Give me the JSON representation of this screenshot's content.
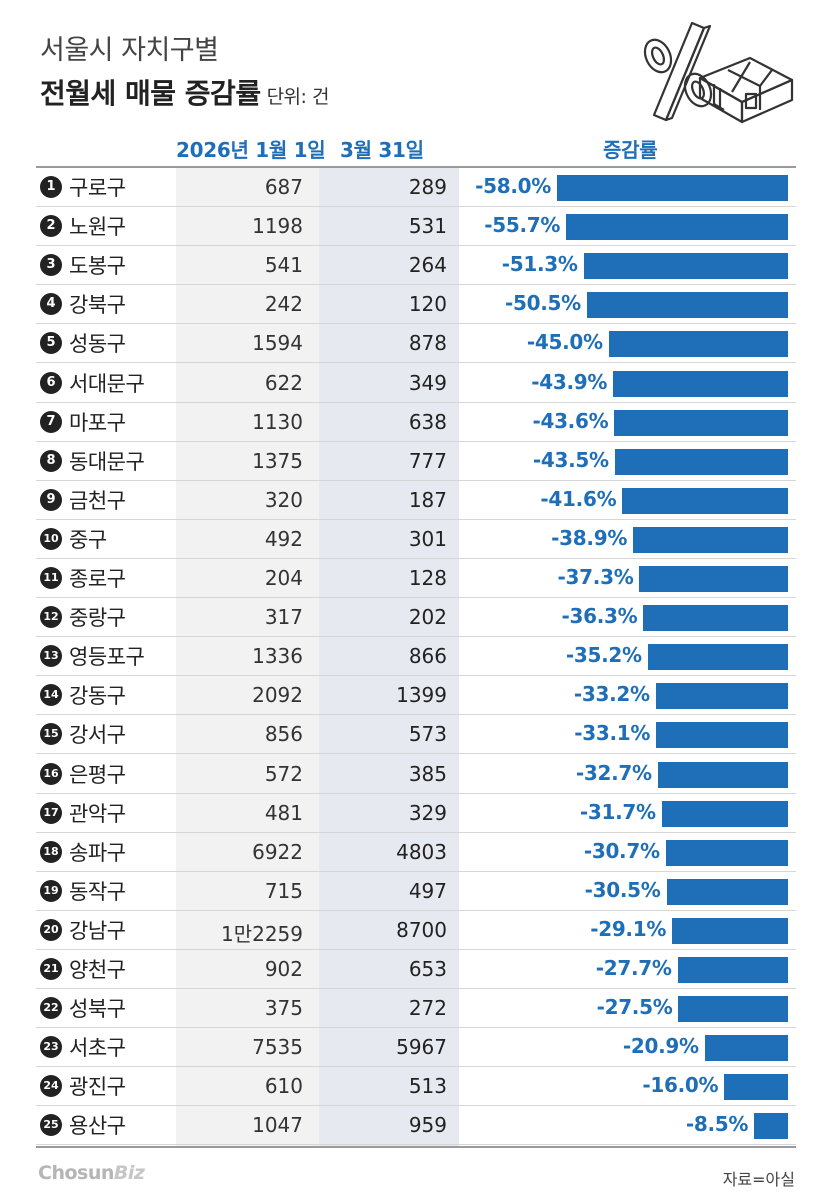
{
  "title": {
    "line1": "서울시 자치구별",
    "line2": "전월세 매물 증감률",
    "unit": "단위: 건"
  },
  "columns": {
    "col1": "2026년 1월 1일",
    "col2": "3월 31일",
    "col3": "증감률"
  },
  "chart_data": {
    "type": "bar",
    "title": "서울시 자치구별 전월세 매물 증감률",
    "unit": "단위: 건",
    "categories": [
      "구로구",
      "노원구",
      "도봉구",
      "강북구",
      "성동구",
      "서대문구",
      "마포구",
      "동대문구",
      "금천구",
      "중구",
      "종로구",
      "중랑구",
      "영등포구",
      "강동구",
      "강서구",
      "은평구",
      "관악구",
      "송파구",
      "동작구",
      "강남구",
      "양천구",
      "성북구",
      "서초구",
      "광진구",
      "용산구"
    ],
    "rank_labels": [
      "1",
      "2",
      "3",
      "4",
      "5",
      "6",
      "7",
      "8",
      "9",
      "10",
      "11",
      "12",
      "13",
      "14",
      "15",
      "16",
      "17",
      "18",
      "19",
      "20",
      "21",
      "22",
      "23",
      "24",
      "25"
    ],
    "jan1_labels": [
      "687",
      "1198",
      "541",
      "242",
      "1594",
      "622",
      "1130",
      "1375",
      "320",
      "492",
      "204",
      "317",
      "1336",
      "2092",
      "856",
      "572",
      "481",
      "6922",
      "715",
      "1만2259",
      "902",
      "375",
      "7535",
      "610",
      "1047"
    ],
    "mar31_labels": [
      "289",
      "531",
      "264",
      "120",
      "878",
      "349",
      "638",
      "777",
      "187",
      "301",
      "128",
      "202",
      "866",
      "1399",
      "573",
      "385",
      "329",
      "4803",
      "497",
      "8700",
      "653",
      "272",
      "5967",
      "513",
      "959"
    ],
    "change_labels": [
      "-58.0%",
      "-55.7%",
      "-51.3%",
      "-50.5%",
      "-45.0%",
      "-43.9%",
      "-43.6%",
      "-43.5%",
      "-41.6%",
      "-38.9%",
      "-37.3%",
      "-36.3%",
      "-35.2%",
      "-33.2%",
      "-33.1%",
      "-32.7%",
      "-31.7%",
      "-30.7%",
      "-30.5%",
      "-29.1%",
      "-27.7%",
      "-27.5%",
      "-20.9%",
      "-16.0%",
      "-8.5%"
    ],
    "values": [
      -58.0,
      -55.7,
      -51.3,
      -50.5,
      -45.0,
      -43.9,
      -43.6,
      -43.5,
      -41.6,
      -38.9,
      -37.3,
      -36.3,
      -35.2,
      -33.2,
      -33.1,
      -32.7,
      -31.7,
      -30.7,
      -30.5,
      -29.1,
      -27.7,
      -27.5,
      -20.9,
      -16.0,
      -8.5
    ],
    "ylabel": "증감률",
    "bar_color": "#1f6fb8"
  },
  "footer": {
    "logo_main": "Chosun",
    "logo_sub": "Biz",
    "source": "자료=아실"
  }
}
